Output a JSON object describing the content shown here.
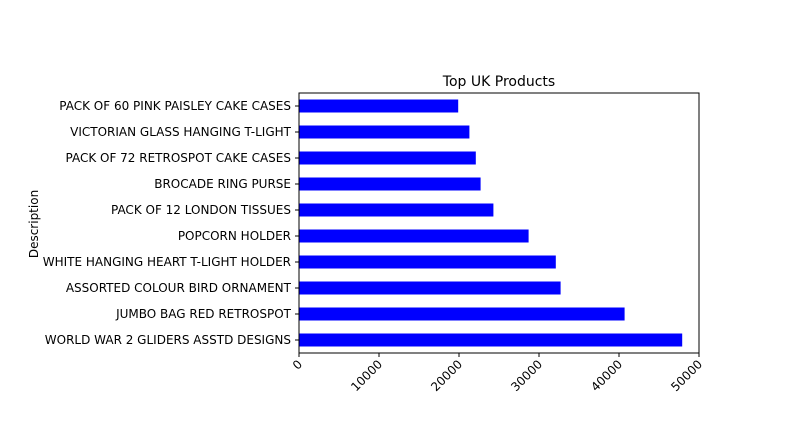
{
  "chart_data": {
    "type": "bar",
    "orientation": "horizontal",
    "title": "Top UK Products",
    "xlabel": "",
    "ylabel": "Description",
    "categories": [
      "WORLD WAR 2 GLIDERS ASSTD DESIGNS",
      "JUMBO BAG RED RETROSPOT",
      "ASSORTED COLOUR BIRD ORNAMENT",
      "WHITE HANGING HEART T-LIGHT HOLDER",
      "POPCORN HOLDER",
      "PACK OF 12 LONDON TISSUES",
      "BROCADE RING PURSE",
      "PACK OF 72 RETROSPOT CAKE CASES",
      "VICTORIAN GLASS HANGING T-LIGHT",
      "PACK OF 60 PINK PAISLEY CAKE CASES"
    ],
    "values": [
      47900,
      40700,
      32700,
      32100,
      28700,
      24300,
      22700,
      22100,
      21300,
      19900
    ],
    "xlim": [
      0,
      50000
    ],
    "xticks": [
      0,
      10000,
      20000,
      30000,
      40000,
      50000
    ],
    "xtick_labels": [
      "0",
      "10000",
      "20000",
      "30000",
      "40000",
      "50000"
    ],
    "bar_color": "#0000ff",
    "grid": false
  }
}
